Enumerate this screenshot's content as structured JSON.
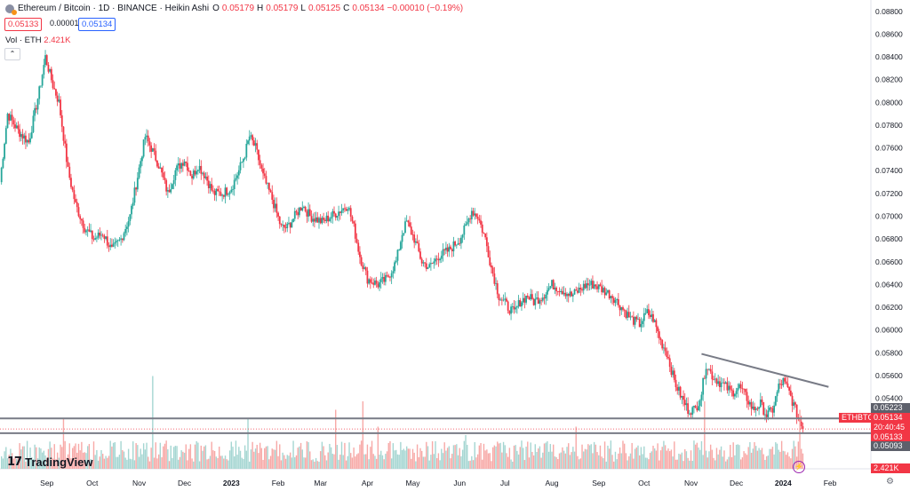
{
  "header": {
    "symbol_title": "Ethereum / Bitcoin · 1D · BINANCE · Heikin Ashi",
    "ohlc": [
      {
        "key": "O",
        "value": "0.05179"
      },
      {
        "key": "H",
        "value": "0.05179"
      },
      {
        "key": "L",
        "value": "0.05125"
      },
      {
        "key": "C",
        "value": "0.05134"
      }
    ],
    "change": "−0.00010 (−0.19%)",
    "sell_price": "0.05133",
    "spread": "0.00001",
    "buy_price": "0.05134",
    "volume_label": "Vol · ETH",
    "volume_value": "2.421K",
    "collapse_glyph": "⌃"
  },
  "branding": {
    "logo_text": "TradingView",
    "logo_mark": "17"
  },
  "price_tags": {
    "upper_line": "0.05223",
    "symbol": "ETHBTC",
    "last_price": "0.05134",
    "countdown": "20:40:45",
    "prev_close": "0.05133",
    "lower_line": "0.05093",
    "volume": "2.421K"
  },
  "icons": {
    "settings": "gear-icon",
    "alert": "lightning-icon",
    "symbol": "eth-btc-coin-icon"
  },
  "colors": {
    "up": "#26a69a",
    "down": "#f23645",
    "trendline": "#787b86",
    "hline": "#787b86",
    "volume_up": "#a5d6d2",
    "volume_down": "#f7a9a7",
    "tag_red": "#f23645",
    "tag_grey": "#5d606b"
  },
  "chart_data": {
    "type": "candlestick",
    "chart_style": "Heikin Ashi",
    "interval": "1D",
    "exchange": "BINANCE",
    "y_axis": {
      "ticks": [
        "0.08800",
        "0.08600",
        "0.08400",
        "0.08200",
        "0.08000",
        "0.07800",
        "0.07600",
        "0.07400",
        "0.07200",
        "0.07000",
        "0.06800",
        "0.06600",
        "0.06400",
        "0.06200",
        "0.06000",
        "0.05800",
        "0.05600",
        "0.05400",
        "0.05200",
        "0.05000",
        "0.04800"
      ],
      "range": [
        0.0478,
        0.089
      ]
    },
    "x_axis": {
      "labels": [
        "Sep",
        "Oct",
        "Nov",
        "Dec",
        "2023",
        "Feb",
        "Mar",
        "Apr",
        "May",
        "Jun",
        "Jul",
        "Aug",
        "Sep",
        "Oct",
        "Nov",
        "Dec",
        "2024",
        "Feb"
      ],
      "bold_labels": [
        "2023",
        "2024"
      ],
      "range": [
        "2022-08-01",
        "2024-02-28"
      ]
    },
    "price_path": [
      [
        "2022-08-01",
        0.073
      ],
      [
        "2022-08-06",
        0.079
      ],
      [
        "2022-08-13",
        0.0775
      ],
      [
        "2022-08-20",
        0.0765
      ],
      [
        "2022-08-27",
        0.081
      ],
      [
        "2022-08-31",
        0.084
      ],
      [
        "2022-09-05",
        0.0815
      ],
      [
        "2022-09-09",
        0.08
      ],
      [
        "2022-09-15",
        0.074
      ],
      [
        "2022-09-20",
        0.071
      ],
      [
        "2022-09-26",
        0.069
      ],
      [
        "2022-10-02",
        0.068
      ],
      [
        "2022-10-08",
        0.0685
      ],
      [
        "2022-10-14",
        0.067
      ],
      [
        "2022-10-20",
        0.068
      ],
      [
        "2022-10-26",
        0.07
      ],
      [
        "2022-10-31",
        0.0735
      ],
      [
        "2022-11-05",
        0.077
      ],
      [
        "2022-11-09",
        0.076
      ],
      [
        "2022-11-14",
        0.0745
      ],
      [
        "2022-11-20",
        0.072
      ],
      [
        "2022-11-25",
        0.074
      ],
      [
        "2022-12-01",
        0.075
      ],
      [
        "2022-12-06",
        0.0735
      ],
      [
        "2022-12-10",
        0.0745
      ],
      [
        "2022-12-15",
        0.0735
      ],
      [
        "2022-12-20",
        0.072
      ],
      [
        "2022-12-26",
        0.072
      ],
      [
        "2023-01-01",
        0.0725
      ],
      [
        "2023-01-06",
        0.074
      ],
      [
        "2023-01-10",
        0.0755
      ],
      [
        "2023-01-13",
        0.077
      ],
      [
        "2023-01-17",
        0.076
      ],
      [
        "2023-01-22",
        0.0735
      ],
      [
        "2023-01-28",
        0.0715
      ],
      [
        "2023-02-03",
        0.069
      ],
      [
        "2023-02-07",
        0.069
      ],
      [
        "2023-02-12",
        0.07
      ],
      [
        "2023-02-17",
        0.071
      ],
      [
        "2023-02-22",
        0.07
      ],
      [
        "2023-03-02",
        0.0695
      ],
      [
        "2023-03-08",
        0.07
      ],
      [
        "2023-03-14",
        0.0705
      ],
      [
        "2023-03-19",
        0.071
      ],
      [
        "2023-03-23",
        0.069
      ],
      [
        "2023-03-27",
        0.0665
      ],
      [
        "2023-04-01",
        0.0645
      ],
      [
        "2023-04-08",
        0.064
      ],
      [
        "2023-04-14",
        0.0645
      ],
      [
        "2023-04-20",
        0.066
      ],
      [
        "2023-04-24",
        0.0685
      ],
      [
        "2023-04-27",
        0.0695
      ],
      [
        "2023-05-02",
        0.068
      ],
      [
        "2023-05-07",
        0.066
      ],
      [
        "2023-05-12",
        0.0655
      ],
      [
        "2023-05-18",
        0.0665
      ],
      [
        "2023-05-25",
        0.067
      ],
      [
        "2023-06-01",
        0.068
      ],
      [
        "2023-06-05",
        0.069
      ],
      [
        "2023-06-09",
        0.0705
      ],
      [
        "2023-06-13",
        0.07
      ],
      [
        "2023-06-18",
        0.068
      ],
      [
        "2023-06-22",
        0.0655
      ],
      [
        "2023-06-27",
        0.063
      ],
      [
        "2023-07-03",
        0.062
      ],
      [
        "2023-07-07",
        0.0615
      ],
      [
        "2023-07-11",
        0.0625
      ],
      [
        "2023-07-16",
        0.063
      ],
      [
        "2023-07-20",
        0.0625
      ],
      [
        "2023-07-26",
        0.063
      ],
      [
        "2023-08-01",
        0.064
      ],
      [
        "2023-08-08",
        0.0635
      ],
      [
        "2023-08-14",
        0.063
      ],
      [
        "2023-08-19",
        0.0635
      ],
      [
        "2023-08-24",
        0.064
      ],
      [
        "2023-08-29",
        0.064
      ],
      [
        "2023-09-04",
        0.0635
      ],
      [
        "2023-09-10",
        0.063
      ],
      [
        "2023-09-16",
        0.062
      ],
      [
        "2023-09-22",
        0.061
      ],
      [
        "2023-09-28",
        0.0605
      ],
      [
        "2023-10-03",
        0.0615
      ],
      [
        "2023-10-07",
        0.061
      ],
      [
        "2023-10-12",
        0.059
      ],
      [
        "2023-10-16",
        0.058
      ],
      [
        "2023-10-21",
        0.0555
      ],
      [
        "2023-10-26",
        0.054
      ],
      [
        "2023-10-30",
        0.053
      ],
      [
        "2023-11-04",
        0.053
      ],
      [
        "2023-11-08",
        0.0545
      ],
      [
        "2023-11-11",
        0.057
      ],
      [
        "2023-11-15",
        0.056
      ],
      [
        "2023-11-19",
        0.0555
      ],
      [
        "2023-11-24",
        0.055
      ],
      [
        "2023-11-28",
        0.0545
      ],
      [
        "2023-12-03",
        0.055
      ],
      [
        "2023-12-08",
        0.054
      ],
      [
        "2023-12-12",
        0.053
      ],
      [
        "2023-12-17",
        0.0535
      ],
      [
        "2023-12-21",
        0.0525
      ],
      [
        "2023-12-25",
        0.053
      ],
      [
        "2023-12-29",
        0.055
      ],
      [
        "2024-01-01",
        0.0555
      ],
      [
        "2024-01-05",
        0.0545
      ],
      [
        "2024-01-09",
        0.053
      ],
      [
        "2024-01-12",
        0.052
      ],
      [
        "2024-01-14",
        0.0513
      ]
    ],
    "horizontal_lines": [
      0.05223,
      0.05093
    ],
    "trendline": [
      [
        "2023-11-08",
        0.0579
      ],
      [
        "2024-01-31",
        0.055
      ]
    ],
    "volume_unit": "ETH",
    "volume_spikes": [
      [
        "2022-09-12",
        0.3
      ],
      [
        "2022-11-10",
        0.55
      ],
      [
        "2023-01-12",
        0.3
      ],
      [
        "2023-03-11",
        0.35
      ],
      [
        "2023-03-29",
        0.4
      ],
      [
        "2023-04-08",
        0.25
      ],
      [
        "2023-06-05",
        0.2
      ],
      [
        "2023-08-17",
        0.25
      ],
      [
        "2023-11-10",
        0.4
      ],
      [
        "2024-01-12",
        0.35
      ]
    ]
  }
}
